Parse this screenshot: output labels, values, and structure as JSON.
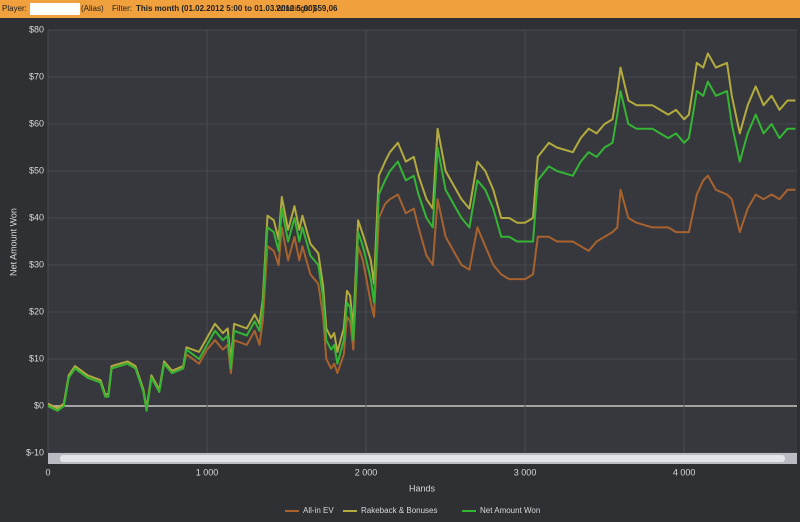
{
  "header": {
    "player_label": "Player:",
    "alias": "(Alias)",
    "filter_label": "Filter:",
    "filter": "This month (01.02.2012 5:00 to 01.03.2012 5:00)",
    "winnings_label": "Winnings:",
    "winnings": "$59,06"
  },
  "chart_data": {
    "type": "line",
    "x_label": "Hands",
    "y_label": "Net Amount Won",
    "x": [
      0,
      60,
      100,
      130,
      170,
      250,
      330,
      360,
      380,
      400,
      500,
      550,
      600,
      620,
      650,
      700,
      730,
      780,
      850,
      870,
      950,
      1000,
      1050,
      1100,
      1130,
      1150,
      1170,
      1250,
      1300,
      1330,
      1350,
      1380,
      1420,
      1450,
      1470,
      1510,
      1550,
      1580,
      1600,
      1650,
      1700,
      1730,
      1750,
      1780,
      1800,
      1820,
      1860,
      1880,
      1900,
      1920,
      1950,
      1980,
      2030,
      2050,
      2080,
      2120,
      2150,
      2200,
      2250,
      2300,
      2330,
      2380,
      2420,
      2450,
      2500,
      2550,
      2600,
      2650,
      2700,
      2750,
      2800,
      2850,
      2900,
      2950,
      3000,
      3050,
      3080,
      3150,
      3200,
      3300,
      3350,
      3400,
      3450,
      3500,
      3550,
      3580,
      3600,
      3650,
      3700,
      3800,
      3850,
      3900,
      3950,
      4000,
      4030,
      4080,
      4120,
      4150,
      4200,
      4270,
      4300,
      4350,
      4400,
      4450,
      4500,
      4550,
      4600,
      4650,
      4700
    ],
    "series": [
      {
        "name": "All-in EV",
        "color": "#a8622e",
        "values": [
          0,
          -1,
          0,
          6,
          8,
          6,
          5,
          2,
          2,
          8,
          9,
          8,
          3,
          -1,
          6,
          3,
          9,
          7,
          8,
          11,
          9,
          12,
          14,
          12,
          13,
          7,
          14,
          13,
          16,
          13,
          18,
          34,
          33,
          30,
          38,
          31,
          36,
          31,
          34,
          28,
          26,
          19,
          10,
          8,
          9,
          7,
          11,
          19,
          18,
          12,
          34,
          31,
          22,
          19,
          40,
          43,
          44,
          45,
          41,
          42,
          38,
          32,
          30,
          44,
          36,
          33,
          30,
          29,
          38,
          34,
          30,
          28,
          27,
          27,
          27,
          28,
          36,
          36,
          35,
          35,
          34,
          33,
          35,
          36,
          37,
          38,
          46,
          40,
          39,
          38,
          38,
          38,
          37,
          37,
          37,
          45,
          48,
          49,
          46,
          45,
          44,
          37,
          42,
          45,
          44,
          45,
          44,
          46,
          46
        ]
      },
      {
        "name": "Rakeback & Bonuses",
        "color": "#b3ab3e",
        "values": [
          0.5,
          -0.5,
          0.5,
          6.5,
          8.5,
          6.5,
          5.5,
          2.5,
          2.5,
          8.5,
          9.5,
          8.5,
          3.5,
          -0.5,
          6.5,
          3.5,
          9.5,
          7.5,
          8.5,
          12.5,
          11.5,
          14.5,
          17.5,
          15.5,
          16.5,
          9.5,
          17.5,
          16.5,
          19.5,
          17.5,
          22.5,
          40.5,
          39.5,
          35.5,
          44.5,
          37.5,
          42.5,
          37.5,
          40.5,
          34.5,
          32.5,
          25.5,
          16.5,
          14.5,
          15.5,
          11.5,
          16.5,
          24.5,
          23.5,
          16.5,
          39.5,
          36.5,
          31,
          26,
          49,
          52,
          54,
          56,
          52,
          53,
          49,
          44,
          42,
          59,
          50,
          47,
          44,
          42,
          52,
          50,
          46,
          40,
          40,
          39,
          39,
          40,
          53,
          56,
          55,
          54,
          57,
          59,
          58,
          60,
          61,
          67,
          72,
          65,
          64,
          64,
          63,
          62,
          63,
          61,
          62,
          73,
          72,
          75,
          72,
          73,
          66,
          58,
          64,
          68,
          64,
          66,
          63,
          65,
          65
        ]
      },
      {
        "name": "Net Amount Won",
        "color": "#34b534",
        "values": [
          0,
          -1,
          0,
          6,
          8,
          6,
          5,
          2,
          2,
          8,
          9,
          8,
          3,
          -1,
          6,
          3,
          9,
          7,
          8,
          12,
          10,
          13,
          16,
          14,
          15,
          8,
          16,
          15,
          18,
          16,
          21,
          38,
          37,
          33,
          42,
          35,
          40,
          35,
          38,
          32,
          30,
          23,
          14,
          12,
          13,
          9,
          14,
          22,
          21,
          14,
          37,
          34,
          27,
          22,
          45,
          48,
          50,
          52,
          48,
          49,
          45,
          40,
          38,
          55,
          46,
          43,
          40,
          38,
          48,
          46,
          42,
          36,
          36,
          35,
          35,
          35,
          48,
          51,
          50,
          49,
          52,
          54,
          53,
          55,
          56,
          62,
          67,
          60,
          59,
          59,
          58,
          57,
          58,
          56,
          57,
          67,
          66,
          69,
          66,
          67,
          60,
          52,
          58,
          62,
          58,
          60,
          57,
          59,
          59
        ]
      }
    ],
    "xlim": [
      0,
      4710
    ],
    "ylim": [
      -10,
      80
    ],
    "xticks": [
      0,
      {
        "value": 1000,
        "label": "1 000"
      },
      {
        "value": 2000,
        "label": "2 000"
      },
      {
        "value": 3000,
        "label": "3 000"
      },
      {
        "value": 4000,
        "label": "4 000"
      }
    ],
    "yticks": [
      {
        "value": -10,
        "label": "$-10"
      },
      {
        "value": 0,
        "label": "$0"
      },
      {
        "value": 10,
        "label": "$10"
      },
      {
        "value": 20,
        "label": "$20"
      },
      {
        "value": 30,
        "label": "$30"
      },
      {
        "value": 40,
        "label": "$40"
      },
      {
        "value": 50,
        "label": "$50"
      },
      {
        "value": 60,
        "label": "$60"
      },
      {
        "value": 70,
        "label": "$70"
      },
      {
        "value": 80,
        "label": "$80"
      }
    ],
    "grid": true,
    "legend": "bottom"
  }
}
